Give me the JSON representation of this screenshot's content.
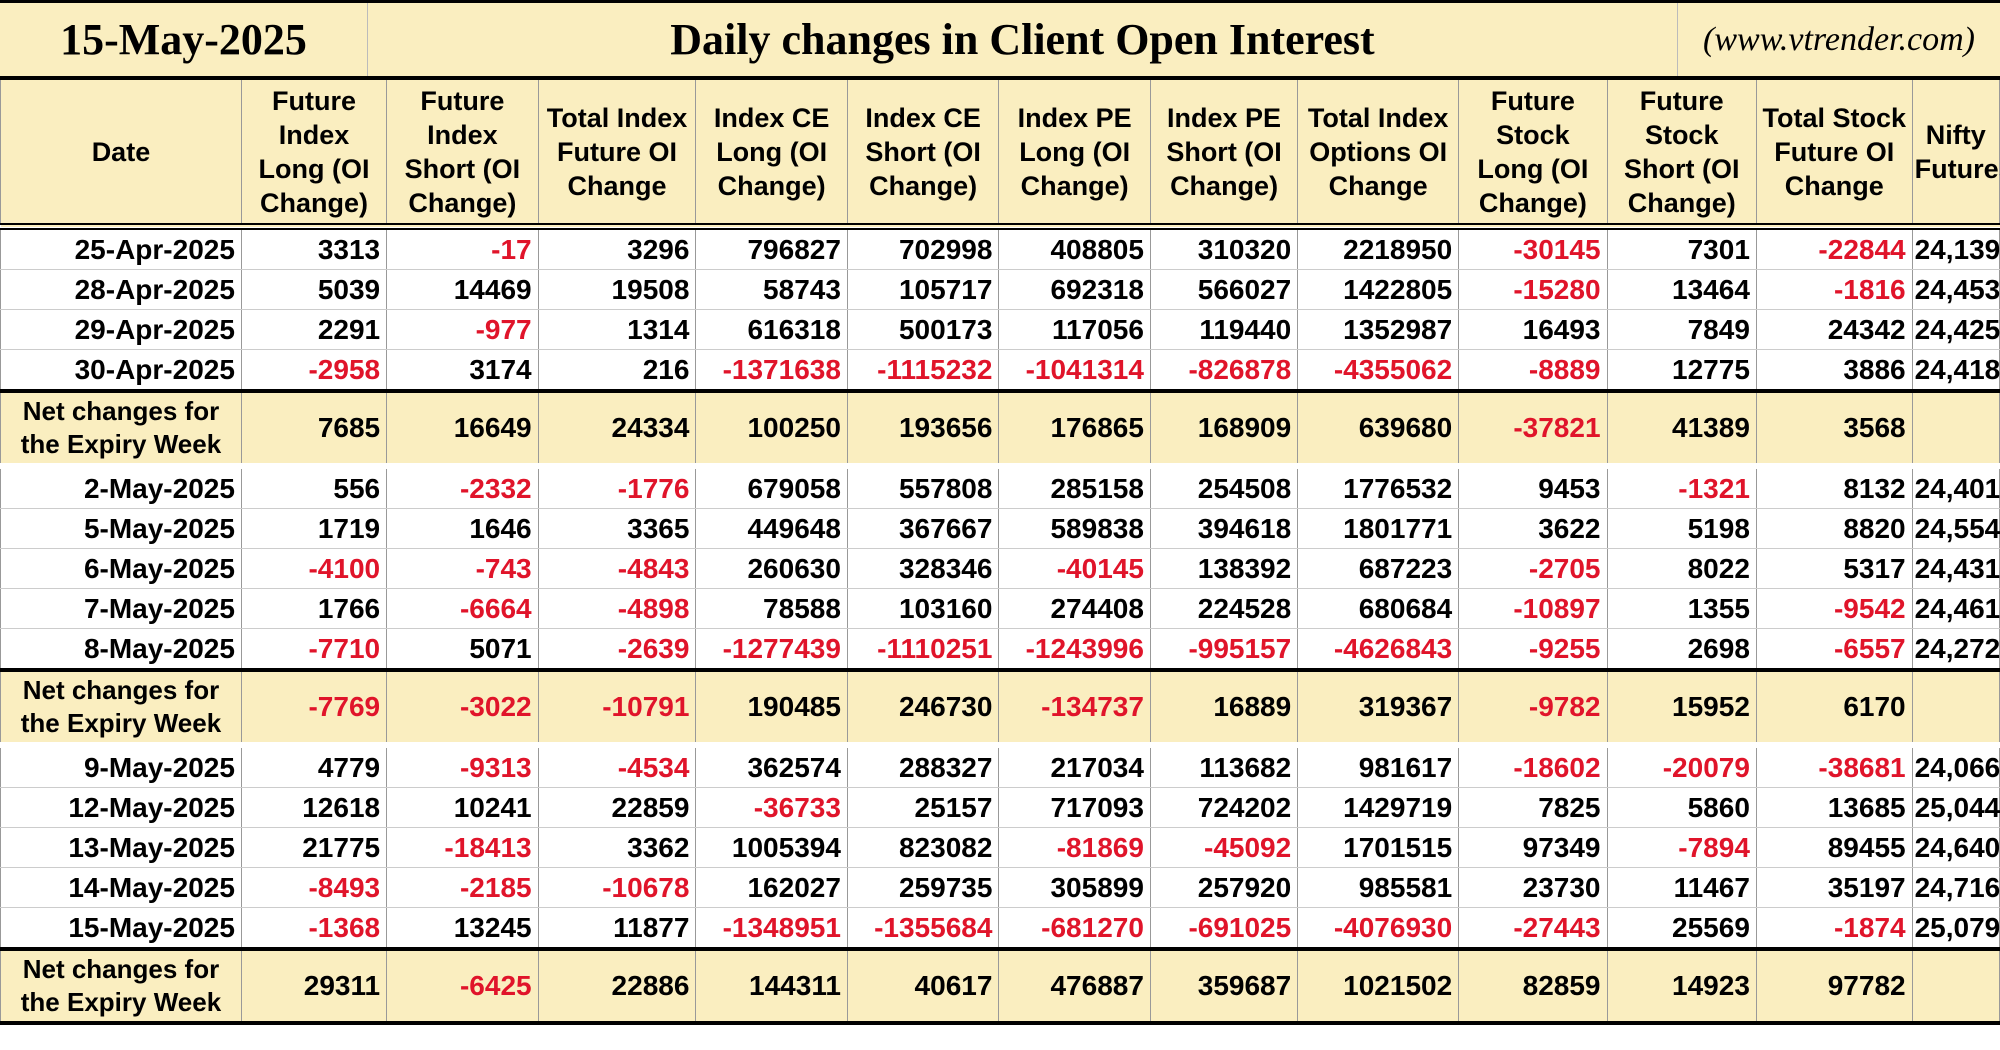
{
  "header": {
    "date": "15-May-2025",
    "title": "Daily changes in Client Open Interest",
    "website": "(www.vtrender.com)"
  },
  "columns": [
    "Date",
    "Future Index Long (OI Change)",
    "Future Index Short (OI Change)",
    "Total Index Future OI Change",
    "Index CE Long (OI Change)",
    "Index CE Short (OI Change)",
    "Index PE Long (OI Change)",
    "Index PE Short (OI Change)",
    "Total Index Options OI Change",
    "Future Stock Long (OI Change)",
    "Future Stock Short (OI Change)",
    "Total Stock Future OI Change",
    "Nifty Futures"
  ],
  "colors": {
    "header_bg": "#faeec0",
    "negative": "#e0142a"
  },
  "groups": [
    {
      "rows": [
        [
          "25-Apr-2025",
          "3313",
          "-17",
          "3296",
          "796827",
          "702998",
          "408805",
          "310320",
          "2218950",
          "-30145",
          "7301",
          "-22844",
          "24,139"
        ],
        [
          "28-Apr-2025",
          "5039",
          "14469",
          "19508",
          "58743",
          "105717",
          "692318",
          "566027",
          "1422805",
          "-15280",
          "13464",
          "-1816",
          "24,453"
        ],
        [
          "29-Apr-2025",
          "2291",
          "-977",
          "1314",
          "616318",
          "500173",
          "117056",
          "119440",
          "1352987",
          "16493",
          "7849",
          "24342",
          "24,425"
        ],
        [
          "30-Apr-2025",
          "-2958",
          "3174",
          "216",
          "-1371638",
          "-1115232",
          "-1041314",
          "-826878",
          "-4355062",
          "-8889",
          "12775",
          "3886",
          "24,418"
        ]
      ],
      "net": [
        "Net changes for the Expiry Week",
        "7685",
        "16649",
        "24334",
        "100250",
        "193656",
        "176865",
        "168909",
        "639680",
        "-37821",
        "41389",
        "3568",
        ""
      ]
    },
    {
      "rows": [
        [
          "2-May-2025",
          "556",
          "-2332",
          "-1776",
          "679058",
          "557808",
          "285158",
          "254508",
          "1776532",
          "9453",
          "-1321",
          "8132",
          "24,401"
        ],
        [
          "5-May-2025",
          "1719",
          "1646",
          "3365",
          "449648",
          "367667",
          "589838",
          "394618",
          "1801771",
          "3622",
          "5198",
          "8820",
          "24,554"
        ],
        [
          "6-May-2025",
          "-4100",
          "-743",
          "-4843",
          "260630",
          "328346",
          "-40145",
          "138392",
          "687223",
          "-2705",
          "8022",
          "5317",
          "24,431"
        ],
        [
          "7-May-2025",
          "1766",
          "-6664",
          "-4898",
          "78588",
          "103160",
          "274408",
          "224528",
          "680684",
          "-10897",
          "1355",
          "-9542",
          "24,461"
        ],
        [
          "8-May-2025",
          "-7710",
          "5071",
          "-2639",
          "-1277439",
          "-1110251",
          "-1243996",
          "-995157",
          "-4626843",
          "-9255",
          "2698",
          "-6557",
          "24,272"
        ]
      ],
      "net": [
        "Net changes for the Expiry Week",
        "-7769",
        "-3022",
        "-10791",
        "190485",
        "246730",
        "-134737",
        "16889",
        "319367",
        "-9782",
        "15952",
        "6170",
        ""
      ]
    },
    {
      "rows": [
        [
          "9-May-2025",
          "4779",
          "-9313",
          "-4534",
          "362574",
          "288327",
          "217034",
          "113682",
          "981617",
          "-18602",
          "-20079",
          "-38681",
          "24,066"
        ],
        [
          "12-May-2025",
          "12618",
          "10241",
          "22859",
          "-36733",
          "25157",
          "717093",
          "724202",
          "1429719",
          "7825",
          "5860",
          "13685",
          "25,044"
        ],
        [
          "13-May-2025",
          "21775",
          "-18413",
          "3362",
          "1005394",
          "823082",
          "-81869",
          "-45092",
          "1701515",
          "97349",
          "-7894",
          "89455",
          "24,640"
        ],
        [
          "14-May-2025",
          "-8493",
          "-2185",
          "-10678",
          "162027",
          "259735",
          "305899",
          "257920",
          "985581",
          "23730",
          "11467",
          "35197",
          "24,716"
        ],
        [
          "15-May-2025",
          "-1368",
          "13245",
          "11877",
          "-1348951",
          "-1355684",
          "-681270",
          "-691025",
          "-4076930",
          "-27443",
          "25569",
          "-1874",
          "25,079"
        ]
      ],
      "net": [
        "Net changes for the Expiry Week",
        "29311",
        "-6425",
        "22886",
        "144311",
        "40617",
        "476887",
        "359687",
        "1021502",
        "82859",
        "14923",
        "97782",
        ""
      ]
    }
  ]
}
